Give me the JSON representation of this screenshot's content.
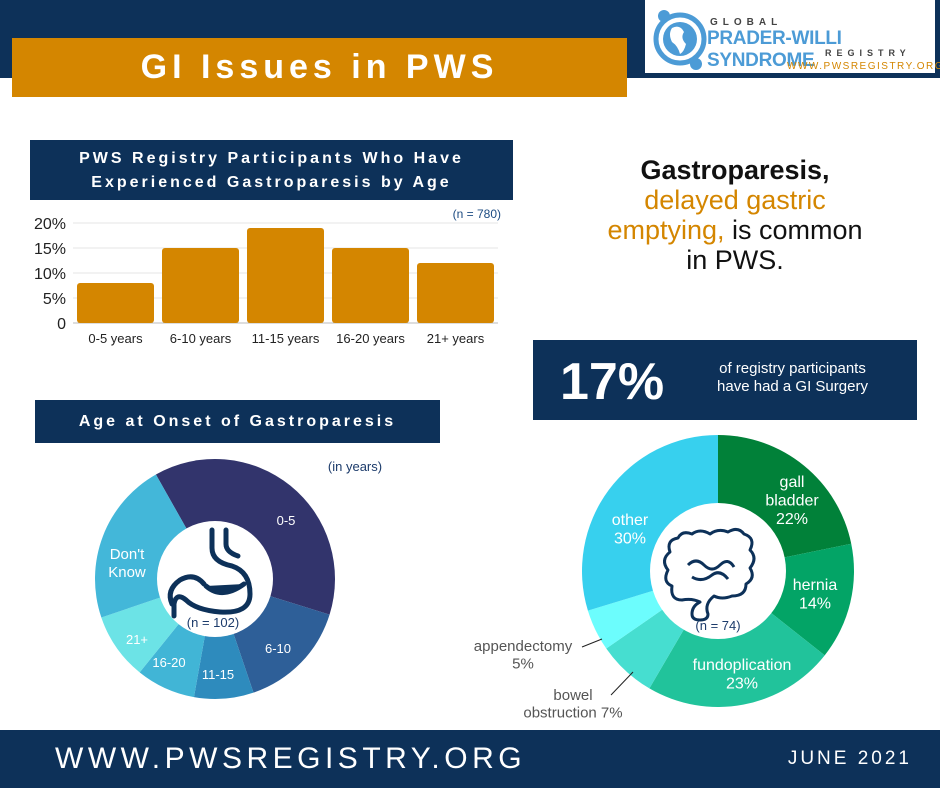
{
  "title": "GI Issues in PWS",
  "logo": {
    "line1": "GLOBAL",
    "line2": "PRADER-WILLI SYNDROME",
    "line3": "REGISTRY",
    "url": "WWW.PWSREGISTRY.ORG"
  },
  "headline": {
    "bold": "Gastroparesis,",
    "orange1": "delayed gastric",
    "orange2": "emptying,",
    "rest1": " is common",
    "rest2": "in PWS."
  },
  "surgery": {
    "value": "17%",
    "text": "of registry participants have had a GI Surgery"
  },
  "footer": {
    "url": "WWW.PWSREGISTRY.ORG",
    "date": "JUNE 2021"
  },
  "colors": {
    "navy": "#0d3159",
    "orange": "#d48600"
  },
  "chart_data": [
    {
      "type": "bar",
      "title": "PWS Registry Participants Who Have Experienced Gastroparesis by Age",
      "note": "(n = 780)",
      "categories": [
        "0-5 years",
        "6-10 years",
        "11-15 years",
        "16-20 years",
        "21+ years"
      ],
      "values": [
        8,
        15,
        19,
        15,
        12
      ],
      "ylim": [
        0,
        20
      ],
      "yticks": [
        "0",
        "5%",
        "10%",
        "15%",
        "20%"
      ],
      "grid": true,
      "color": "#d48600"
    },
    {
      "type": "pie",
      "title": "Age at Onset of Gastroparesis",
      "note": "(in years)",
      "center_label": "(n = 102)",
      "center_icon": "stomach-icon",
      "categories": [
        "0-5",
        "6-10",
        "11-15",
        "16-20",
        "21+",
        "Don't Know"
      ],
      "values": [
        38,
        15,
        8,
        8,
        9,
        22
      ],
      "colors": [
        "#32346c",
        "#2e5f98",
        "#2e8bbd",
        "#41b5d6",
        "#6ce3e6",
        "#43b7d9"
      ]
    },
    {
      "type": "pie",
      "center_label": "(n = 74)",
      "center_icon": "intestine-icon",
      "categories": [
        "gall bladder",
        "hernia",
        "fundoplication",
        "bowel obstruction",
        "appendectomy",
        "other"
      ],
      "labels": [
        "gall bladder 22%",
        "hernia 14%",
        "fundoplication 23%",
        "bowel obstruction 7%",
        "appendectomy 5%",
        "other 30%"
      ],
      "values": [
        22,
        14,
        23,
        7,
        5,
        30
      ],
      "colors": [
        "#018139",
        "#03a466",
        "#21c39b",
        "#46ded0",
        "#6cfdfd",
        "#37d0ee"
      ]
    }
  ]
}
